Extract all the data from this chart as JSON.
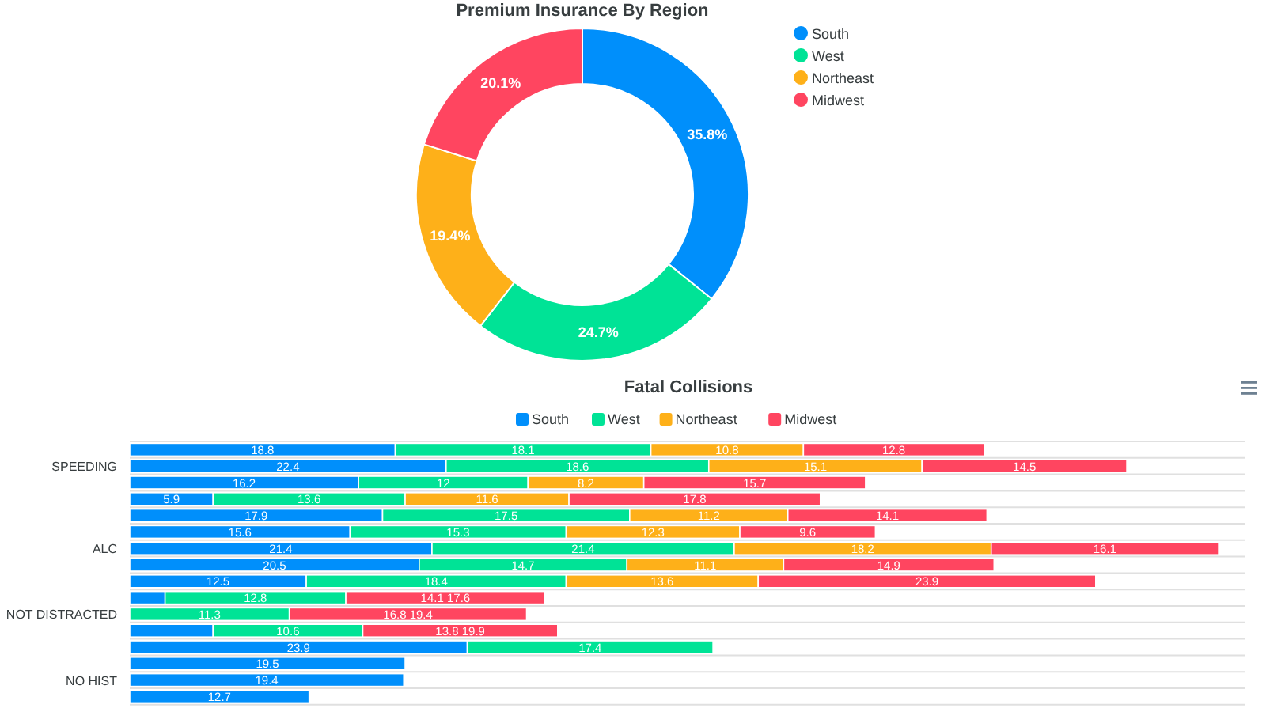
{
  "chart_data": [
    {
      "type": "donut",
      "title": "Premium Insurance By Region",
      "categories": [
        "South",
        "West",
        "Northeast",
        "Midwest"
      ],
      "values": [
        35.8,
        24.7,
        19.4,
        20.1
      ],
      "colors": [
        "#008ffb",
        "#00e396",
        "#feb019",
        "#ff4560"
      ],
      "value_labels": [
        "35.8%",
        "24.7%",
        "19.4%",
        "20.1%"
      ],
      "legend": "top right"
    },
    {
      "type": "bar",
      "title": "Fatal Collisions",
      "orientation": "horizontal",
      "categories": [
        null,
        "SPEEDING",
        null,
        null,
        null,
        null,
        "ALC",
        null,
        null,
        null,
        "NOT DISTRACTED",
        null,
        null,
        null,
        "NO HIST",
        null
      ],
      "xlim": [
        0,
        79
      ],
      "stacked": true,
      "tick_labels": "y",
      "grid": "y",
      "legend": "top",
      "series": [
        {
          "name": "South",
          "color": "#008ffb",
          "values": [
            18.8,
            22.4,
            16.2,
            5.9,
            17.9,
            15.6,
            21.4,
            20.5,
            12.5,
            2.5,
            null,
            5.9,
            23.9,
            19.5,
            19.4,
            12.7
          ],
          "value_labels": [
            "18.8",
            "22.4",
            "16.2",
            "5.9",
            "17.9",
            "15.6",
            "21.4",
            "20.5",
            "12.5",
            null,
            null,
            null,
            "23.9",
            "19.5",
            "19.4",
            "12.7"
          ]
        },
        {
          "name": "West",
          "color": "#00e396",
          "values": [
            18.1,
            18.6,
            12,
            13.6,
            17.5,
            15.3,
            21.4,
            14.7,
            18.4,
            12.8,
            11.3,
            10.6,
            17.4,
            null,
            null,
            null
          ],
          "value_labels": [
            "18.1",
            "18.6",
            "12",
            "13.6",
            "17.5",
            "15.3",
            "21.4",
            "14.7",
            "18.4",
            "12.8",
            "11.3",
            "10.6",
            "17.4",
            null,
            null,
            null
          ]
        },
        {
          "name": "Northeast",
          "color": "#feb019",
          "values": [
            10.8,
            15.1,
            8.2,
            11.6,
            11.2,
            12.3,
            18.2,
            11.1,
            13.6,
            null,
            null,
            null,
            null,
            null,
            null,
            null
          ],
          "value_labels": [
            "10.8",
            "15.1",
            "8.2",
            "11.6",
            "11.2",
            "12.3",
            "18.2",
            "11.1",
            "13.6",
            null,
            null,
            null,
            null,
            null,
            null,
            null
          ]
        },
        {
          "name": "Midwest",
          "color": "#ff4560",
          "values": [
            12.8,
            14.5,
            15.7,
            17.8,
            14.1,
            9.6,
            16.1,
            14.9,
            23.9,
            14.1,
            16.8,
            13.8,
            null,
            null,
            null,
            null
          ],
          "value_labels": [
            "12.8",
            "14.5",
            "15.7",
            "17.8",
            "14.1",
            "9.6",
            "16.1",
            "14.9",
            "23.9",
            "14.1 17.6",
            "16.8 19.4",
            "13.8 19.9",
            null,
            null,
            null,
            null
          ]
        }
      ]
    }
  ]
}
